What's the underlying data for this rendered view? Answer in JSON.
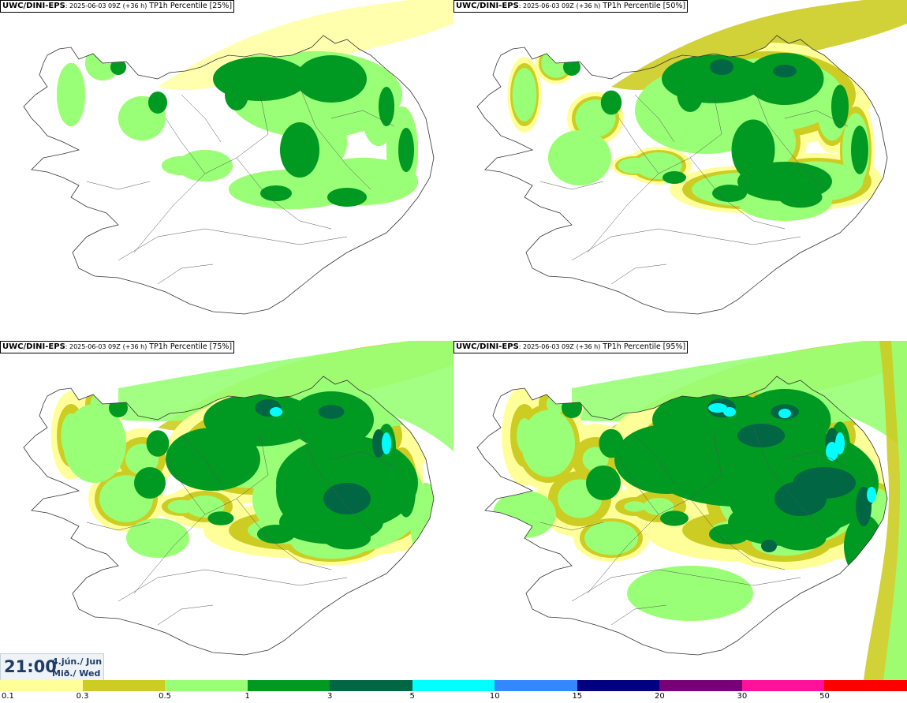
{
  "panels": [
    {
      "model": "UWC/DINI-EPS",
      "forecast": ": 2025-06-03 09Z",
      "lead": "(+36 h)",
      "variable": "TP1h Percentile",
      "percentile": "[25%]",
      "level": 0
    },
    {
      "model": "UWC/DINI-EPS",
      "forecast": ": 2025-06-03 09Z",
      "lead": "(+36 h)",
      "variable": "TP1h Percentile",
      "percentile": "[50%]",
      "level": 1
    },
    {
      "model": "UWC/DINI-EPS",
      "forecast": ": 2025-06-03 09Z",
      "lead": "(+36 h)",
      "variable": "TP1h Percentile",
      "percentile": "[75%]",
      "level": 2
    },
    {
      "model": "UWC/DINI-EPS",
      "forecast": ": 2025-06-03 09Z",
      "lead": "(+36 h)",
      "variable": "TP1h Percentile",
      "percentile": "[95%]",
      "level": 3
    }
  ],
  "valid_time": {
    "time": "21:00",
    "date_line1": "4.jún./ Jun",
    "date_line2": "Mið./ Wed"
  },
  "legend": {
    "labels": [
      "0.1",
      "0.3",
      "0.5",
      "1",
      "3",
      "5",
      "10",
      "15",
      "20",
      "30",
      "50"
    ],
    "colors": [
      "#ffff99",
      "#cccc22",
      "#99ff77",
      "#009922",
      "#006644",
      "#00ffff",
      "#3388ff",
      "#000080",
      "#770077",
      "#ff1199",
      "#ff0000"
    ]
  }
}
